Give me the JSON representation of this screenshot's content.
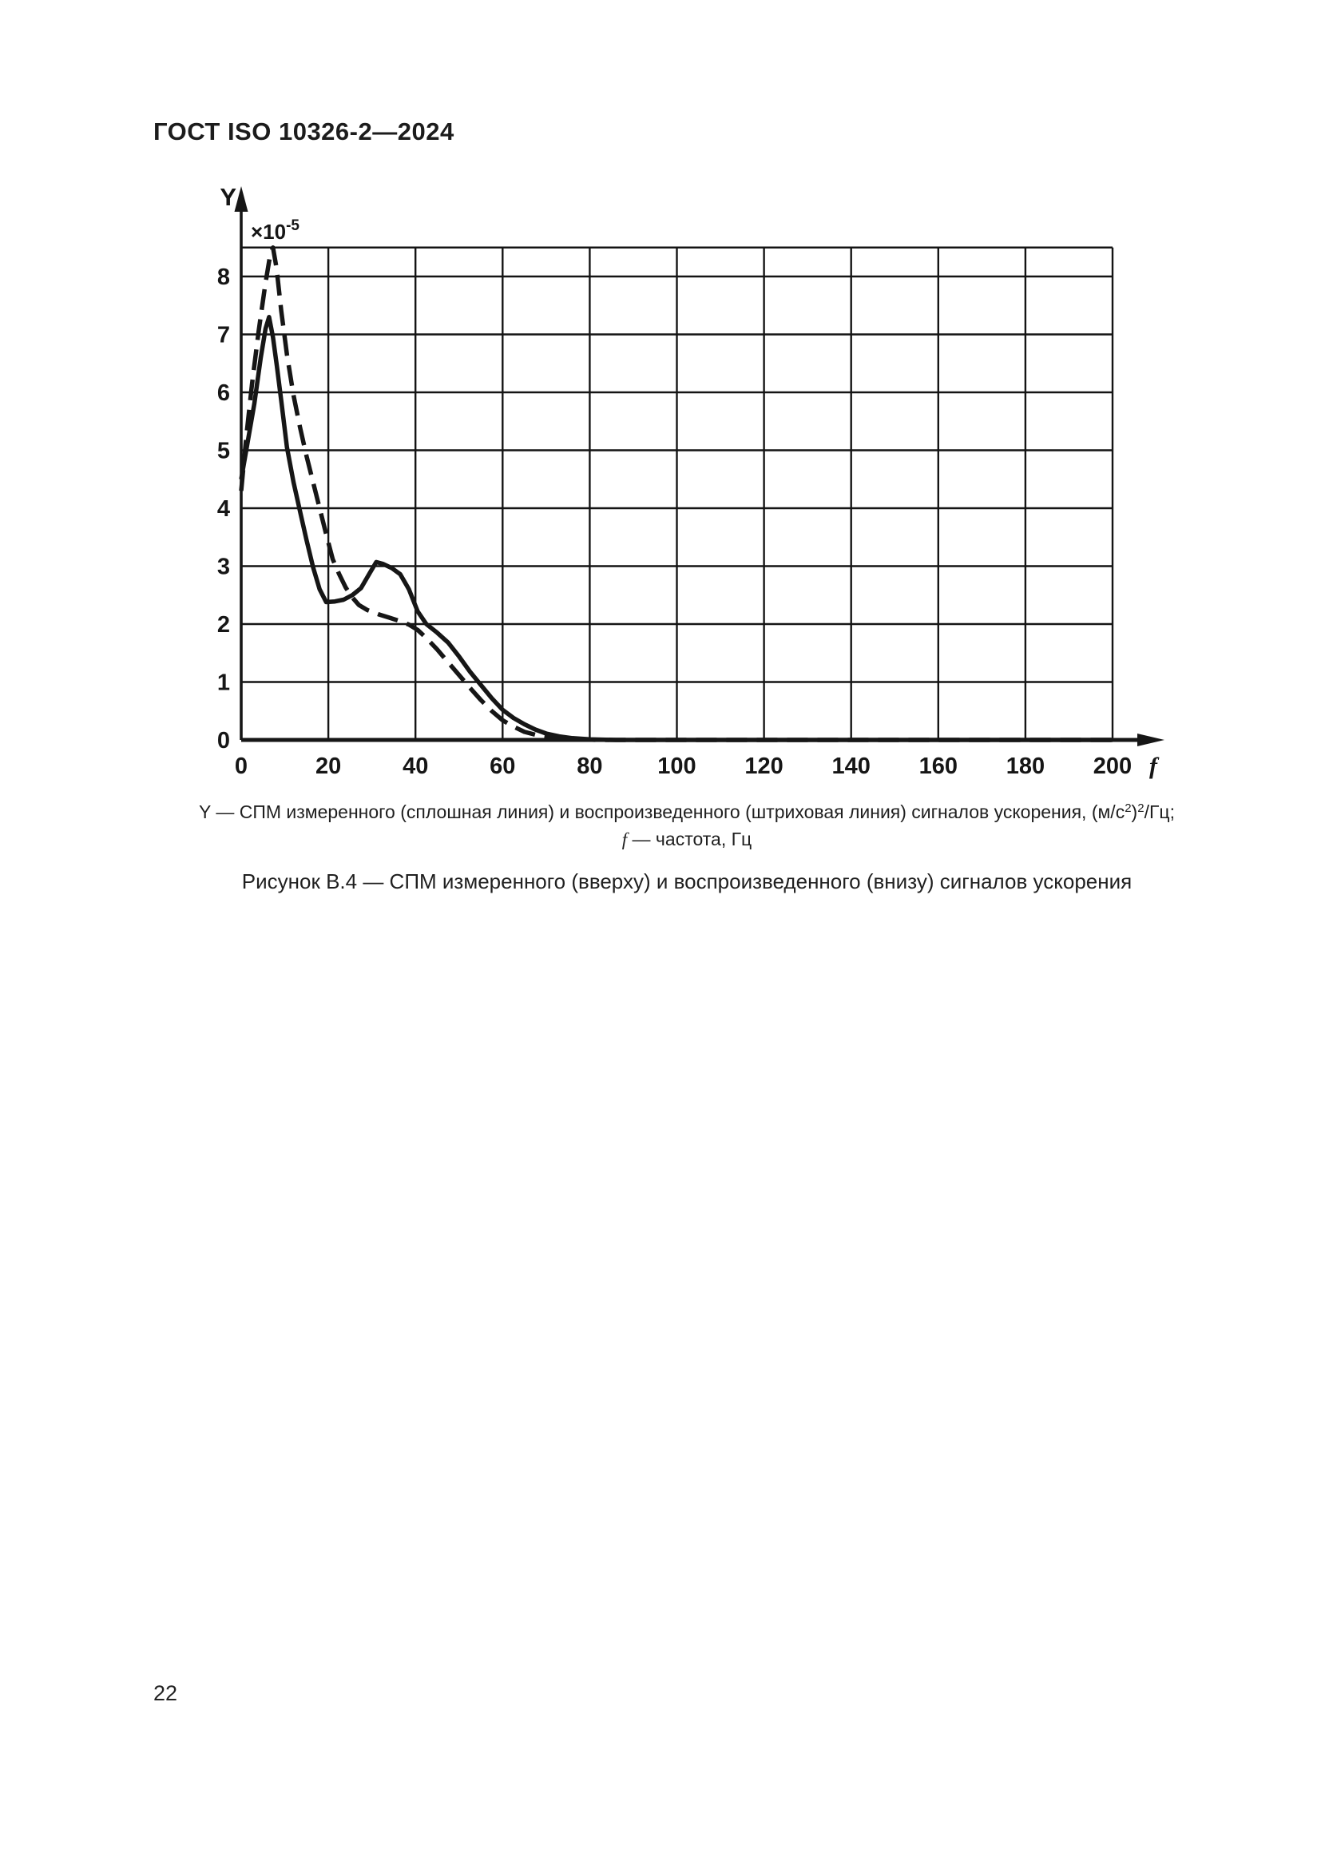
{
  "page": {
    "header": "ГОСТ ISO 10326-2—2024",
    "page_number": "22"
  },
  "figure": {
    "legend": {
      "line1_part1": "Y — СПМ измеренного (сплошная линия) и воспроизведенного (штриховая линия) сигналов ускорения, (м/с",
      "line1_sup1": "2",
      "line1_part2": ")",
      "line1_sup2": "2",
      "line1_part3": "/Гц;",
      "line2_f": "f",
      "line2_rest": " — частота, Гц"
    },
    "caption": "Рисунок В.4 — СПМ измеренного (вверху) и воспроизведенного (внизу) сигналов ускорения"
  },
  "chart_data": {
    "type": "line",
    "title": "",
    "y_axis_label": "Y",
    "x_axis_label": "f",
    "scale_note_base": "×10",
    "scale_note_sup": "-5",
    "y_units": "(м/с2)2/Гц",
    "x_units": "Гц",
    "xlim": [
      0,
      200
    ],
    "ylim": [
      0,
      8.5
    ],
    "grid": true,
    "grid_top": 8.5,
    "legend_position": "below",
    "xticks": [
      0,
      20,
      40,
      60,
      80,
      100,
      120,
      140,
      160,
      180,
      200
    ],
    "yticks": [
      0,
      1,
      2,
      3,
      4,
      5,
      6,
      7,
      8
    ],
    "line_color": "#161616",
    "series": [
      {
        "name": "СПМ измеренного сигнала ускорения (сплошная линия)",
        "style": "solid",
        "points": [
          [
            0,
            4.5
          ],
          [
            1.5,
            5.15
          ],
          [
            3,
            5.8
          ],
          [
            4.5,
            6.6
          ],
          [
            5.6,
            7.1
          ],
          [
            6.4,
            7.3
          ],
          [
            7.3,
            6.95
          ],
          [
            8.2,
            6.45
          ],
          [
            9.2,
            5.85
          ],
          [
            10.5,
            5.05
          ],
          [
            12,
            4.45
          ],
          [
            13.5,
            3.95
          ],
          [
            15,
            3.45
          ],
          [
            16.5,
            2.98
          ],
          [
            18,
            2.6
          ],
          [
            19.5,
            2.38
          ],
          [
            21.5,
            2.39
          ],
          [
            23.5,
            2.42
          ],
          [
            25.5,
            2.5
          ],
          [
            27.5,
            2.62
          ],
          [
            29.5,
            2.88
          ],
          [
            31,
            3.07
          ],
          [
            32.5,
            3.04
          ],
          [
            34.5,
            2.97
          ],
          [
            36.5,
            2.86
          ],
          [
            38.5,
            2.6
          ],
          [
            40.5,
            2.22
          ],
          [
            42.5,
            2.0
          ],
          [
            45,
            1.85
          ],
          [
            47.5,
            1.68
          ],
          [
            50,
            1.44
          ],
          [
            52.5,
            1.18
          ],
          [
            55,
            0.95
          ],
          [
            57.5,
            0.72
          ],
          [
            60,
            0.52
          ],
          [
            62.5,
            0.38
          ],
          [
            65,
            0.27
          ],
          [
            67.5,
            0.18
          ],
          [
            70,
            0.11
          ],
          [
            73,
            0.06
          ],
          [
            76,
            0.03
          ],
          [
            80,
            0.01
          ],
          [
            86,
            0
          ],
          [
            200,
            0
          ]
        ]
      },
      {
        "name": "СПМ воспроизведенного сигнала ускорения (штриховая линия)",
        "style": "dashed",
        "points": [
          [
            0,
            4.3
          ],
          [
            1.2,
            5.25
          ],
          [
            2.5,
            6.15
          ],
          [
            4,
            7.05
          ],
          [
            5.5,
            7.85
          ],
          [
            6.6,
            8.35
          ],
          [
            7.3,
            8.5
          ],
          [
            8.1,
            8.15
          ],
          [
            9.2,
            7.4
          ],
          [
            10.5,
            6.65
          ],
          [
            12,
            5.95
          ],
          [
            13.5,
            5.4
          ],
          [
            15,
            4.9
          ],
          [
            16.5,
            4.45
          ],
          [
            18,
            4.0
          ],
          [
            19.5,
            3.55
          ],
          [
            21,
            3.12
          ],
          [
            22.5,
            2.86
          ],
          [
            24,
            2.63
          ],
          [
            25.5,
            2.46
          ],
          [
            27,
            2.33
          ],
          [
            29,
            2.24
          ],
          [
            31.5,
            2.17
          ],
          [
            34,
            2.11
          ],
          [
            36.5,
            2.05
          ],
          [
            38.5,
            1.99
          ],
          [
            40.5,
            1.9
          ],
          [
            42.5,
            1.76
          ],
          [
            45,
            1.56
          ],
          [
            47.5,
            1.34
          ],
          [
            50,
            1.12
          ],
          [
            52.5,
            0.9
          ],
          [
            55,
            0.69
          ],
          [
            57.5,
            0.5
          ],
          [
            60,
            0.34
          ],
          [
            62.5,
            0.23
          ],
          [
            65,
            0.14
          ],
          [
            68,
            0.08
          ],
          [
            71,
            0.04
          ],
          [
            75,
            0.015
          ],
          [
            82,
            0
          ],
          [
            200,
            0
          ]
        ]
      }
    ]
  }
}
